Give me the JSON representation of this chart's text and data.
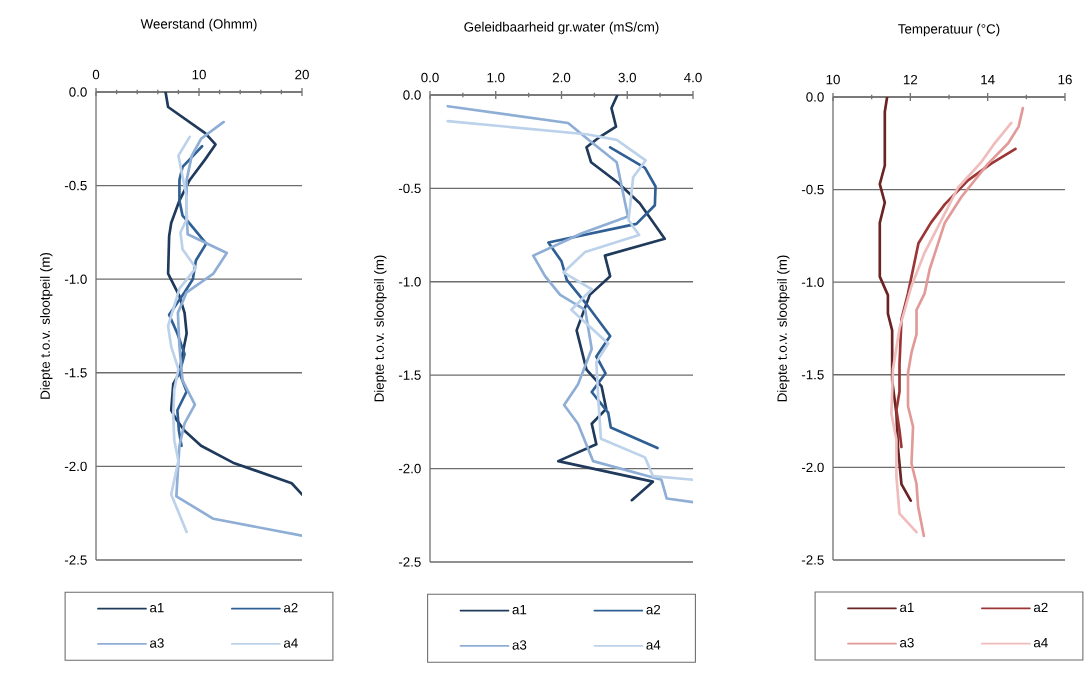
{
  "chart_data": [
    {
      "type": "line",
      "xlabel": "Weerstand (Ohmm)",
      "ylabel": "Diepte t.o.v. slootpeil (m)",
      "xlim": [
        0,
        20
      ],
      "xticks": [
        0,
        {
          "value": 2,
          "label": null
        },
        {
          "value": 4,
          "label": null
        },
        {
          "value": 6,
          "label": null
        },
        {
          "value": 8,
          "label": null
        },
        10,
        {
          "value": 12,
          "label": null
        },
        {
          "value": 14,
          "label": null
        },
        {
          "value": 16,
          "label": null
        },
        {
          "value": 18,
          "label": null
        },
        20
      ],
      "ylim": [
        -2.5,
        0
      ],
      "yticks": [
        {
          "value": 0,
          "label": "0.0"
        },
        {
          "value": -0.5,
          "label": "-0.5"
        },
        {
          "value": -1,
          "label": "-1.0"
        },
        {
          "value": -1.5,
          "label": "-1.5"
        },
        {
          "value": -2,
          "label": "-2.0"
        },
        {
          "value": -2.5,
          "label": "-2.5"
        }
      ],
      "grid": "y",
      "legend": "bottom",
      "series": [
        {
          "name": "a1",
          "color": "#203a5c",
          "x": [
            6.75,
            7.0,
            10.6,
            11.6,
            10.6,
            9.1,
            8.1,
            7.3,
            7.1,
            7.0,
            8.1,
            8.6,
            8.8,
            8.4,
            8.1,
            7.5,
            7.3,
            7.8,
            8.6,
            10.2,
            13.3,
            19.0,
            20.0
          ],
          "values": [
            0.0,
            -0.08,
            -0.22,
            -0.28,
            -0.36,
            -0.47,
            -0.58,
            -0.7,
            -0.77,
            -0.97,
            -1.09,
            -1.18,
            -1.29,
            -1.4,
            -1.5,
            -1.56,
            -1.7,
            -1.75,
            -1.81,
            -1.89,
            -1.98,
            -2.09,
            -2.15
          ]
        },
        {
          "name": "a2",
          "color": "#2f5f94",
          "x": [
            10.3,
            9.1,
            8.4,
            8.1,
            8.1,
            8.4,
            8.9,
            10.7,
            9.7,
            9.4,
            8.6,
            7.1,
            7.9,
            8.6,
            8.1,
            8.8,
            7.9,
            8.05,
            8.3
          ],
          "values": [
            -0.29,
            -0.36,
            -0.4,
            -0.47,
            -0.58,
            -0.66,
            -0.69,
            -0.81,
            -0.9,
            -1.0,
            -1.07,
            -1.19,
            -1.29,
            -1.4,
            -1.5,
            -1.6,
            -1.7,
            -1.81,
            -1.89
          ]
        },
        {
          "name": "a3",
          "color": "#8eaed6",
          "x": [
            12.4,
            10.2,
            9.3,
            8.8,
            8.8,
            8.9,
            12.7,
            11.4,
            8.8,
            7.95,
            8.1,
            8.4,
            9.6,
            8.6,
            8.1,
            7.8,
            11.4,
            20.0
          ],
          "values": [
            -0.16,
            -0.25,
            -0.34,
            -0.47,
            -0.65,
            -0.76,
            -0.86,
            -0.97,
            -1.07,
            -1.18,
            -1.36,
            -1.54,
            -1.67,
            -1.77,
            -1.89,
            -2.16,
            -2.28,
            -2.37
          ]
        },
        {
          "name": "a4",
          "color": "#bcd2ea",
          "x": [
            9.1,
            8.0,
            8.4,
            8.8,
            8.8,
            8.2,
            8.4,
            9.7,
            8.1,
            7.5,
            7.0,
            7.3,
            8.0,
            7.6,
            7.5,
            7.6,
            8.0,
            7.3,
            8.8
          ],
          "values": [
            -0.24,
            -0.34,
            -0.451,
            -0.56,
            -0.68,
            -0.75,
            -0.84,
            -0.94,
            -1.05,
            -1.16,
            -1.25,
            -1.36,
            -1.48,
            -1.59,
            -1.73,
            -1.86,
            -1.97,
            -2.15,
            -2.35
          ]
        }
      ]
    },
    {
      "type": "line",
      "xlabel": "Geleidbaarheid gr.water (mS/cm)",
      "ylabel": "Diepte t.o.v. slootpeil (m)",
      "xlim": [
        0,
        4
      ],
      "xticks": [
        {
          "value": 0,
          "label": "0.0"
        },
        {
          "value": 0.5,
          "label": null
        },
        {
          "value": 1,
          "label": "1.0"
        },
        {
          "value": 1.5,
          "label": null
        },
        {
          "value": 2,
          "label": "2.0"
        },
        {
          "value": 2.5,
          "label": null
        },
        {
          "value": 3,
          "label": "3.0"
        },
        {
          "value": 3.5,
          "label": null
        },
        {
          "value": 4,
          "label": "4.0"
        }
      ],
      "ylim": [
        -2.5,
        0
      ],
      "yticks": [
        {
          "value": 0,
          "label": "0.0"
        },
        {
          "value": -0.5,
          "label": "-0.5"
        },
        {
          "value": -1,
          "label": "-1.0"
        },
        {
          "value": -1.5,
          "label": "-1.5"
        },
        {
          "value": -2,
          "label": "-2.0"
        },
        {
          "value": -2.5,
          "label": "-2.5"
        }
      ],
      "grid": "y",
      "legend": "bottom",
      "series": [
        {
          "name": "a1",
          "color": "#203a5c",
          "x": [
            2.85,
            2.76,
            2.83,
            2.56,
            2.38,
            2.45,
            2.86,
            3.19,
            3.57,
            2.66,
            2.74,
            2.43,
            2.23,
            2.38,
            2.61,
            2.68,
            2.46,
            2.53,
            1.95,
            3.39,
            3.07
          ],
          "values": [
            0.0,
            -0.07,
            -0.17,
            -0.23,
            -0.28,
            -0.36,
            -0.47,
            -0.58,
            -0.77,
            -0.86,
            -0.97,
            -1.07,
            -1.26,
            -1.47,
            -1.56,
            -1.68,
            -1.76,
            -1.87,
            -1.96,
            -2.07,
            -2.17
          ]
        },
        {
          "name": "a2",
          "color": "#2f5f94",
          "x": [
            2.74,
            3.27,
            3.43,
            3.42,
            3.14,
            1.8,
            2.0,
            2.08,
            2.38,
            2.74,
            2.53,
            2.67,
            2.46,
            2.71,
            2.75,
            3.46
          ],
          "values": [
            -0.28,
            -0.39,
            -0.49,
            -0.59,
            -0.69,
            -0.79,
            -0.89,
            -0.99,
            -1.12,
            -1.29,
            -1.4,
            -1.49,
            -1.59,
            -1.7,
            -1.78,
            -1.89
          ]
        },
        {
          "name": "a3",
          "color": "#8eaed6",
          "x": [
            0.27,
            2.1,
            2.41,
            2.84,
            3.01,
            2.31,
            1.57,
            1.75,
            1.98,
            2.36,
            2.46,
            2.25,
            2.04,
            2.25,
            2.48,
            3.52,
            3.6,
            4.0
          ],
          "values": [
            -0.06,
            -0.15,
            -0.24,
            -0.36,
            -0.65,
            -0.74,
            -0.86,
            -0.97,
            -1.07,
            -1.15,
            -1.36,
            -1.55,
            -1.66,
            -1.76,
            -1.96,
            -2.06,
            -2.16,
            -2.18
          ]
        },
        {
          "name": "a4",
          "color": "#bcd2ea",
          "x": [
            0.27,
            2.38,
            2.84,
            3.28,
            3.09,
            3.02,
            3.18,
            2.36,
            2.03,
            2.46,
            2.15,
            2.71,
            2.53,
            2.56,
            2.6,
            3.27,
            3.39,
            4.0
          ],
          "values": [
            -0.14,
            -0.21,
            -0.24,
            -0.35,
            -0.44,
            -0.67,
            -0.75,
            -0.84,
            -0.95,
            -1.04,
            -1.15,
            -1.33,
            -1.43,
            -1.63,
            -1.84,
            -1.94,
            -2.04,
            -2.06
          ]
        }
      ]
    },
    {
      "type": "line",
      "xlabel": "Temperatuur (°C)",
      "ylabel": "Diepte t.o.v. slootpeil (m)",
      "xlim": [
        10,
        16
      ],
      "xticks": [
        10,
        {
          "value": 11,
          "label": null
        },
        12,
        {
          "value": 13,
          "label": null
        },
        14,
        {
          "value": 15,
          "label": null
        },
        16
      ],
      "ylim": [
        -2.5,
        0
      ],
      "yticks": [
        {
          "value": 0,
          "label": "0.0"
        },
        {
          "value": -0.5,
          "label": "-0.5"
        },
        {
          "value": -1,
          "label": "-1.0"
        },
        {
          "value": -1.5,
          "label": "-1.5"
        },
        {
          "value": -2,
          "label": "-2.0"
        },
        {
          "value": -2.5,
          "label": "-2.5"
        }
      ],
      "grid": "y",
      "legend": "bottom",
      "series": [
        {
          "name": "a1",
          "color": "#6b2424",
          "x": [
            11.4,
            11.34,
            11.34,
            11.21,
            11.34,
            11.21,
            11.21,
            11.42,
            11.42,
            11.53,
            11.53,
            11.64,
            11.68,
            11.77,
            12.01
          ],
          "values": [
            0.0,
            -0.08,
            -0.37,
            -0.47,
            -0.57,
            -0.68,
            -0.97,
            -1.07,
            -1.17,
            -1.26,
            -1.53,
            -1.71,
            -1.89,
            -2.09,
            -2.18
          ]
        },
        {
          "name": "a2",
          "color": "#9c3636",
          "x": [
            14.72,
            14.09,
            13.49,
            12.89,
            12.53,
            12.21,
            11.94,
            11.77,
            11.72,
            11.72,
            11.64,
            11.72,
            11.77
          ],
          "values": [
            -0.28,
            -0.36,
            -0.45,
            -0.58,
            -0.68,
            -0.79,
            -1.06,
            -1.2,
            -1.44,
            -1.59,
            -1.69,
            -1.8,
            -1.89
          ]
        },
        {
          "name": "a3",
          "color": "#e29a98",
          "x": [
            14.91,
            14.8,
            14.53,
            14.01,
            13.32,
            12.89,
            12.5,
            12.37,
            12.16,
            12.16,
            12.03,
            11.94,
            11.94,
            12.07,
            12.03,
            12.16,
            12.2,
            12.35
          ],
          "values": [
            -0.06,
            -0.16,
            -0.25,
            -0.36,
            -0.54,
            -0.68,
            -0.93,
            -1.06,
            -1.15,
            -1.28,
            -1.38,
            -1.49,
            -1.67,
            -1.78,
            -1.98,
            -2.09,
            -2.21,
            -2.37
          ]
        },
        {
          "name": "a4",
          "color": "#f0bcbc",
          "x": [
            14.61,
            14.18,
            13.84,
            13.23,
            12.89,
            12.37,
            12.03,
            11.72,
            11.55,
            11.51,
            11.64,
            11.64,
            11.72,
            12.16
          ],
          "values": [
            -0.14,
            -0.25,
            -0.35,
            -0.49,
            -0.63,
            -0.84,
            -1.02,
            -1.25,
            -1.47,
            -1.71,
            -1.85,
            -2.05,
            -2.25,
            -2.35
          ]
        }
      ]
    }
  ]
}
